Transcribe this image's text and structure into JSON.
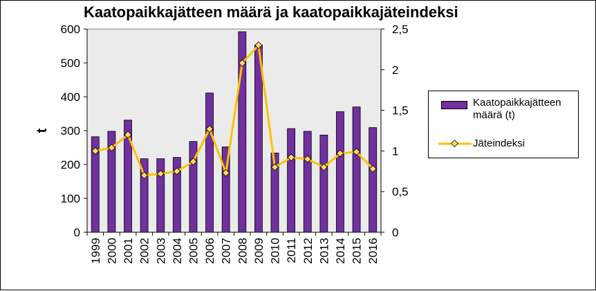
{
  "chart_data": {
    "type": "bar",
    "title": "Kaatopaikkajätteen määrä ja kaatopaikkajäteindeksi",
    "ylabel": "t",
    "y2label": "",
    "xlabel": "",
    "categories": [
      "1999",
      "2000",
      "2001",
      "2002",
      "2003",
      "2004",
      "2005",
      "2006",
      "2007",
      "2008",
      "2009",
      "2010",
      "2011",
      "2012",
      "2013",
      "2014",
      "2015",
      "2016"
    ],
    "series": [
      {
        "name": "Kaatopaikkajätteen määrä (t)",
        "type": "bar",
        "axis": "left",
        "color": "#7030a0",
        "values": [
          282,
          298,
          331,
          217,
          217,
          221,
          268,
          411,
          252,
          592,
          553,
          234,
          306,
          298,
          287,
          356,
          370,
          309
        ]
      },
      {
        "name": "Jäteindeksi",
        "type": "line",
        "axis": "right",
        "color": "#ffc000",
        "values": [
          1.0,
          1.04,
          1.2,
          0.7,
          0.72,
          0.75,
          0.87,
          1.27,
          0.73,
          2.08,
          2.3,
          0.8,
          0.92,
          0.9,
          0.8,
          0.97,
          0.99,
          0.78
        ]
      }
    ],
    "ylim": [
      0,
      600
    ],
    "y2lim": [
      0,
      2.5
    ],
    "yticks": [
      "0",
      "100",
      "200",
      "300",
      "400",
      "500",
      "600"
    ],
    "y2ticks": [
      "0",
      "0,5",
      "1",
      "1,5",
      "2",
      "2,5"
    ],
    "plot_background": "#ebebeb",
    "legend_position": "right",
    "grid": false
  }
}
